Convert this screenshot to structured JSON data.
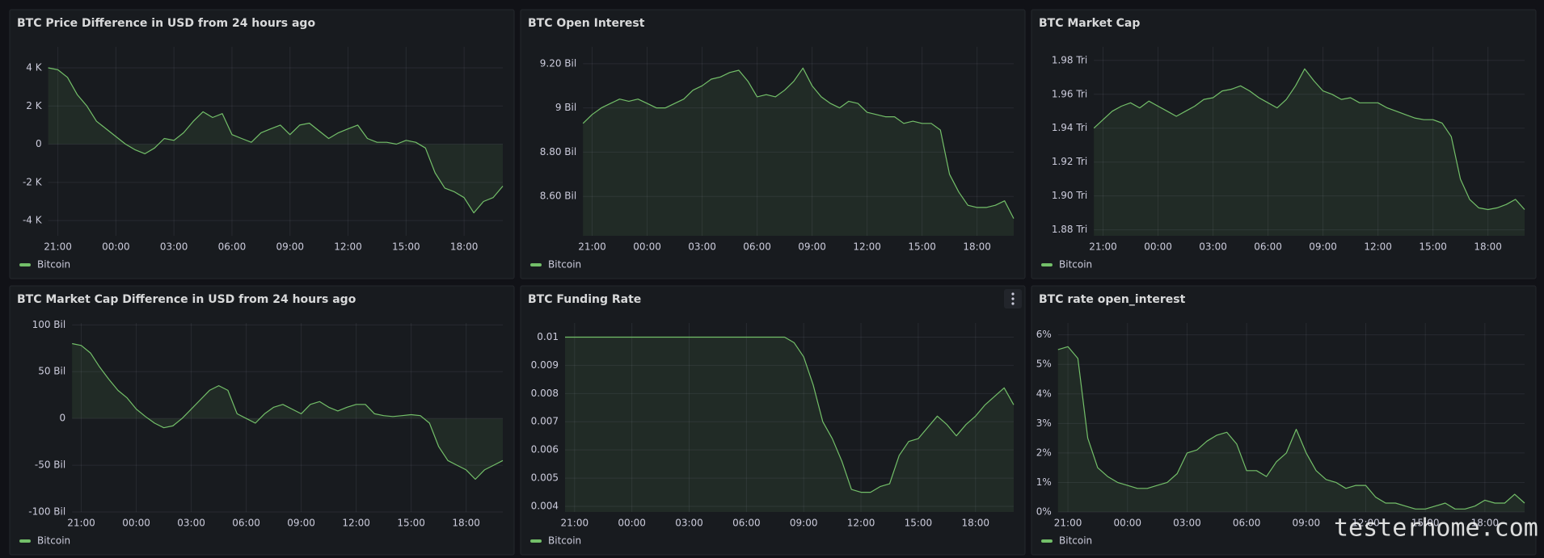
{
  "chart_data": [
    {
      "type": "line",
      "title": "BTC Price Difference in USD from 24 hours ago",
      "x": [
        "20:30",
        "21:00",
        "21:30",
        "22:00",
        "22:30",
        "23:00",
        "23:30",
        "00:00",
        "00:30",
        "01:00",
        "01:30",
        "02:00",
        "02:30",
        "03:00",
        "03:30",
        "04:00",
        "04:30",
        "05:00",
        "05:30",
        "06:00",
        "06:30",
        "07:00",
        "07:30",
        "08:00",
        "08:30",
        "09:00",
        "09:30",
        "10:00",
        "10:30",
        "11:00",
        "11:30",
        "12:00",
        "12:30",
        "13:00",
        "13:30",
        "14:00",
        "14:30",
        "15:00",
        "15:30",
        "16:00",
        "16:30",
        "17:00",
        "17:30",
        "18:00",
        "18:30",
        "19:00",
        "19:30",
        "20:00"
      ],
      "xticks": [
        "21:00",
        "00:00",
        "03:00",
        "06:00",
        "09:00",
        "12:00",
        "15:00",
        "18:00"
      ],
      "ylim": [
        -4800,
        5100
      ],
      "yticks": [
        {
          "value": -4000,
          "label": "-4 K"
        },
        {
          "value": -2000,
          "label": "-2 K"
        },
        0,
        {
          "value": 2000,
          "label": "2 K"
        },
        {
          "value": 4000,
          "label": "4 K"
        }
      ],
      "grid": true,
      "legend": "bottom-left",
      "series": [
        {
          "name": "Bitcoin",
          "color": "#73bf69",
          "values": [
            4000,
            3900,
            3500,
            2600,
            2000,
            1200,
            800,
            400,
            0,
            -300,
            -500,
            -200,
            300,
            200,
            600,
            1200,
            1700,
            1400,
            1600,
            500,
            300,
            100,
            600,
            800,
            1000,
            500,
            1000,
            1100,
            700,
            300,
            600,
            800,
            1000,
            300,
            100,
            100,
            0,
            200,
            100,
            -200,
            -1500,
            -2300,
            -2500,
            -2800,
            -3600,
            -3000,
            -2800,
            -2200
          ]
        }
      ]
    },
    {
      "type": "line",
      "title": "BTC Open Interest",
      "x": [
        "20:30",
        "21:00",
        "21:30",
        "22:00",
        "22:30",
        "23:00",
        "23:30",
        "00:00",
        "00:30",
        "01:00",
        "01:30",
        "02:00",
        "02:30",
        "03:00",
        "03:30",
        "04:00",
        "04:30",
        "05:00",
        "05:30",
        "06:00",
        "06:30",
        "07:00",
        "07:30",
        "08:00",
        "08:30",
        "09:00",
        "09:30",
        "10:00",
        "10:30",
        "11:00",
        "11:30",
        "12:00",
        "12:30",
        "13:00",
        "13:30",
        "14:00",
        "14:30",
        "15:00",
        "15:30",
        "16:00",
        "16:30",
        "17:00",
        "17:30",
        "18:00",
        "18:30",
        "19:00",
        "19:30",
        "20:00"
      ],
      "xticks": [
        "21:00",
        "00:00",
        "03:00",
        "06:00",
        "09:00",
        "12:00",
        "15:00",
        "18:00"
      ],
      "ylim": [
        8.422,
        9.276
      ],
      "yticks": [
        {
          "value": 8.6,
          "label": "8.60 Bil"
        },
        {
          "value": 8.8,
          "label": "8.80 Bil"
        },
        {
          "value": 9,
          "label": "9 Bil"
        },
        {
          "value": 9.2,
          "label": "9.20 Bil"
        }
      ],
      "grid": true,
      "legend": "bottom-left",
      "series": [
        {
          "name": "Bitcoin",
          "color": "#73bf69",
          "values": [
            8.93,
            8.97,
            9.0,
            9.02,
            9.04,
            9.03,
            9.04,
            9.02,
            9.0,
            9.0,
            9.02,
            9.04,
            9.08,
            9.1,
            9.13,
            9.14,
            9.16,
            9.17,
            9.12,
            9.05,
            9.06,
            9.05,
            9.08,
            9.12,
            9.18,
            9.1,
            9.05,
            9.02,
            9.0,
            9.03,
            9.02,
            8.98,
            8.97,
            8.96,
            8.96,
            8.93,
            8.94,
            8.93,
            8.93,
            8.9,
            8.7,
            8.62,
            8.56,
            8.55,
            8.55,
            8.56,
            8.58,
            8.5
          ]
        }
      ]
    },
    {
      "type": "line",
      "title": "BTC Market Cap",
      "x": [
        "20:30",
        "21:00",
        "21:30",
        "22:00",
        "22:30",
        "23:00",
        "23:30",
        "00:00",
        "00:30",
        "01:00",
        "01:30",
        "02:00",
        "02:30",
        "03:00",
        "03:30",
        "04:00",
        "04:30",
        "05:00",
        "05:30",
        "06:00",
        "06:30",
        "07:00",
        "07:30",
        "08:00",
        "08:30",
        "09:00",
        "09:30",
        "10:00",
        "10:30",
        "11:00",
        "11:30",
        "12:00",
        "12:30",
        "13:00",
        "13:30",
        "14:00",
        "14:30",
        "15:00",
        "15:30",
        "16:00",
        "16:30",
        "17:00",
        "17:30",
        "18:00",
        "18:30",
        "19:00",
        "19:30",
        "20:00"
      ],
      "xticks": [
        "21:00",
        "00:00",
        "03:00",
        "06:00",
        "09:00",
        "12:00",
        "15:00",
        "18:00"
      ],
      "ylim": [
        1.8765,
        1.988
      ],
      "yticks": [
        {
          "value": 1.88,
          "label": "1.88 Tri"
        },
        {
          "value": 1.9,
          "label": "1.90 Tri"
        },
        {
          "value": 1.92,
          "label": "1.92 Tri"
        },
        {
          "value": 1.94,
          "label": "1.94 Tri"
        },
        {
          "value": 1.96,
          "label": "1.96 Tri"
        },
        {
          "value": 1.98,
          "label": "1.98 Tri"
        }
      ],
      "grid": true,
      "legend": "bottom-left",
      "series": [
        {
          "name": "Bitcoin",
          "color": "#73bf69",
          "values": [
            1.94,
            1.945,
            1.95,
            1.953,
            1.955,
            1.952,
            1.956,
            1.953,
            1.95,
            1.947,
            1.95,
            1.953,
            1.957,
            1.958,
            1.962,
            1.963,
            1.965,
            1.962,
            1.958,
            1.955,
            1.952,
            1.957,
            1.965,
            1.975,
            1.968,
            1.962,
            1.96,
            1.957,
            1.958,
            1.955,
            1.955,
            1.955,
            1.952,
            1.95,
            1.948,
            1.946,
            1.945,
            1.945,
            1.943,
            1.935,
            1.91,
            1.898,
            1.893,
            1.892,
            1.893,
            1.895,
            1.898,
            1.892
          ]
        }
      ]
    },
    {
      "type": "line",
      "title": "BTC Market Cap Difference in USD from 24 hours ago",
      "x": [
        "20:30",
        "21:00",
        "21:30",
        "22:00",
        "22:30",
        "23:00",
        "23:30",
        "00:00",
        "00:30",
        "01:00",
        "01:30",
        "02:00",
        "02:30",
        "03:00",
        "03:30",
        "04:00",
        "04:30",
        "05:00",
        "05:30",
        "06:00",
        "06:30",
        "07:00",
        "07:30",
        "08:00",
        "08:30",
        "09:00",
        "09:30",
        "10:00",
        "10:30",
        "11:00",
        "11:30",
        "12:00",
        "12:30",
        "13:00",
        "13:30",
        "14:00",
        "14:30",
        "15:00",
        "15:30",
        "16:00",
        "16:30",
        "17:00",
        "17:30",
        "18:00",
        "18:30",
        "19:00",
        "19:30",
        "20:00"
      ],
      "xticks": [
        "21:00",
        "00:00",
        "03:00",
        "06:00",
        "09:00",
        "12:00",
        "15:00",
        "18:00"
      ],
      "ylim": [
        -100,
        102
      ],
      "yticks": [
        {
          "value": -100,
          "label": "-100 Bil"
        },
        {
          "value": -50,
          "label": "-50 Bil"
        },
        0,
        {
          "value": 50,
          "label": "50 Bil"
        },
        {
          "value": 100,
          "label": "100 Bil"
        }
      ],
      "grid": true,
      "legend": "bottom-left",
      "series": [
        {
          "name": "Bitcoin",
          "color": "#73bf69",
          "values": [
            80,
            78,
            70,
            55,
            42,
            30,
            22,
            10,
            2,
            -5,
            -10,
            -8,
            0,
            10,
            20,
            30,
            35,
            30,
            5,
            0,
            -5,
            5,
            12,
            15,
            10,
            5,
            15,
            18,
            12,
            8,
            12,
            15,
            15,
            5,
            3,
            2,
            3,
            4,
            3,
            -5,
            -30,
            -45,
            -50,
            -55,
            -65,
            -55,
            -50,
            -45
          ]
        }
      ]
    },
    {
      "type": "line",
      "title": "BTC Funding Rate",
      "x": [
        "20:30",
        "21:00",
        "21:30",
        "22:00",
        "22:30",
        "23:00",
        "23:30",
        "00:00",
        "00:30",
        "01:00",
        "01:30",
        "02:00",
        "02:30",
        "03:00",
        "03:30",
        "04:00",
        "04:30",
        "05:00",
        "05:30",
        "06:00",
        "06:30",
        "07:00",
        "07:30",
        "08:00",
        "08:30",
        "09:00",
        "09:30",
        "10:00",
        "10:30",
        "11:00",
        "11:30",
        "12:00",
        "12:30",
        "13:00",
        "13:30",
        "14:00",
        "14:30",
        "15:00",
        "15:30",
        "16:00",
        "16:30",
        "17:00",
        "17:30",
        "18:00",
        "18:30",
        "19:00",
        "19:30",
        "20:00"
      ],
      "xticks": [
        "21:00",
        "00:00",
        "03:00",
        "06:00",
        "09:00",
        "12:00",
        "15:00",
        "18:00"
      ],
      "ylim": [
        0.0038,
        0.0105
      ],
      "yticks": [
        0.004,
        0.005,
        0.006,
        0.007,
        0.008,
        0.009,
        0.01
      ],
      "grid": true,
      "legend": "bottom-left",
      "series": [
        {
          "name": "Bitcoin",
          "color": "#73bf69",
          "values": [
            0.01,
            0.01,
            0.01,
            0.01,
            0.01,
            0.01,
            0.01,
            0.01,
            0.01,
            0.01,
            0.01,
            0.01,
            0.01,
            0.01,
            0.01,
            0.01,
            0.01,
            0.01,
            0.01,
            0.01,
            0.01,
            0.01,
            0.01,
            0.01,
            0.0098,
            0.0093,
            0.0083,
            0.007,
            0.0064,
            0.0056,
            0.0046,
            0.0045,
            0.0045,
            0.0047,
            0.0048,
            0.0058,
            0.0063,
            0.0064,
            0.0068,
            0.0072,
            0.0069,
            0.0065,
            0.0069,
            0.0072,
            0.0076,
            0.0079,
            0.0082,
            0.0076
          ]
        }
      ]
    },
    {
      "type": "line",
      "title": "BTC rate open_interest",
      "x": [
        "20:30",
        "21:00",
        "21:30",
        "22:00",
        "22:30",
        "23:00",
        "23:30",
        "00:00",
        "00:30",
        "01:00",
        "01:30",
        "02:00",
        "02:30",
        "03:00",
        "03:30",
        "04:00",
        "04:30",
        "05:00",
        "05:30",
        "06:00",
        "06:30",
        "07:00",
        "07:30",
        "08:00",
        "08:30",
        "09:00",
        "09:30",
        "10:00",
        "10:30",
        "11:00",
        "11:30",
        "12:00",
        "12:30",
        "13:00",
        "13:30",
        "14:00",
        "14:30",
        "15:00",
        "15:30",
        "16:00",
        "16:30",
        "17:00",
        "17:30",
        "18:00",
        "18:30",
        "19:00",
        "19:30",
        "20:00"
      ],
      "xticks": [
        "21:00",
        "00:00",
        "03:00",
        "06:00",
        "09:00",
        "12:00",
        "15:00",
        "18:00"
      ],
      "ylim": [
        0,
        6.4
      ],
      "yticks": [
        {
          "value": 0,
          "label": "0%"
        },
        {
          "value": 1,
          "label": "1%"
        },
        {
          "value": 2,
          "label": "2%"
        },
        {
          "value": 3,
          "label": "3%"
        },
        {
          "value": 4,
          "label": "4%"
        },
        {
          "value": 5,
          "label": "5%"
        },
        {
          "value": 6,
          "label": "6%"
        }
      ],
      "grid": true,
      "legend": "bottom-left",
      "series": [
        {
          "name": "Bitcoin",
          "color": "#73bf69",
          "values": [
            5.5,
            5.6,
            5.2,
            2.5,
            1.5,
            1.2,
            1.0,
            0.9,
            0.8,
            0.8,
            0.9,
            1.0,
            1.3,
            2.0,
            2.1,
            2.4,
            2.6,
            2.7,
            2.3,
            1.4,
            1.4,
            1.2,
            1.7,
            2.0,
            2.8,
            2.0,
            1.4,
            1.1,
            1.0,
            0.8,
            0.9,
            0.9,
            0.5,
            0.3,
            0.3,
            0.2,
            0.1,
            0.1,
            0.2,
            0.3,
            0.1,
            0.1,
            0.2,
            0.4,
            0.3,
            0.3,
            0.6,
            0.3
          ]
        }
      ]
    }
  ],
  "watermark": "testerhome.com"
}
